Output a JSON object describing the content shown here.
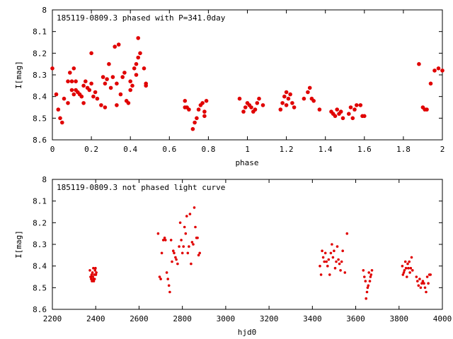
{
  "colors": {
    "points": "#e00000",
    "axis": "#000000",
    "background": "#ffffff"
  },
  "chart_data": [
    {
      "type": "scatter",
      "title": "185119-0809.3 phased with P=341.0day",
      "xlabel": "phase",
      "ylabel": "I[mag]",
      "xlim": [
        0,
        2
      ],
      "ylim": [
        8.6,
        8
      ],
      "y_inverted": true,
      "grid": false,
      "xticks": [
        "0",
        "0.2",
        "0.4",
        "0.6",
        "0.8",
        "1",
        "1.2",
        "1.4",
        "1.6",
        "1.8",
        "2"
      ],
      "yticks": [
        "8",
        "8.1",
        "8.2",
        "8.3",
        "8.4",
        "8.5",
        "8.6"
      ],
      "x": [
        0.0,
        0.03,
        0.04,
        0.05,
        0.06,
        0.08,
        0.08,
        0.09,
        0.1,
        0.1,
        0.11,
        0.11,
        0.12,
        0.13,
        0.14,
        0.15,
        0.16,
        0.17,
        0.18,
        0.19,
        0.2,
        0.2,
        0.21,
        0.22,
        0.23,
        0.25,
        0.26,
        0.27,
        0.28,
        0.29,
        0.3,
        0.31,
        0.32,
        0.33,
        0.34,
        0.35,
        0.36,
        0.37,
        0.38,
        0.39,
        0.4,
        0.4,
        0.41,
        0.42,
        0.43,
        0.43,
        0.44,
        0.44,
        0.45,
        0.47,
        0.48,
        0.48,
        0.68,
        0.68,
        0.69,
        0.7,
        0.72,
        0.73,
        0.74,
        0.75,
        0.76,
        0.77,
        0.78,
        0.78,
        0.79,
        0.96,
        0.98,
        0.99,
        1.0,
        1.01,
        1.02,
        1.03,
        1.04,
        1.05,
        1.06,
        1.08,
        1.17,
        1.18,
        1.19,
        1.2,
        1.2,
        1.21,
        1.22,
        1.23,
        1.24,
        1.29,
        1.31,
        1.32,
        1.33,
        1.34,
        1.37,
        1.43,
        1.44,
        1.45,
        1.46,
        1.47,
        1.48,
        1.49,
        1.52,
        1.53,
        1.54,
        1.55,
        1.56,
        1.58,
        1.59,
        1.6,
        1.88,
        1.9,
        1.91,
        1.92,
        1.94,
        1.96,
        1.98,
        2.0,
        0.02,
        0.27,
        0.33,
        0.16,
        0.12
      ],
      "y": [
        8.27,
        8.46,
        8.5,
        8.52,
        8.41,
        8.43,
        8.33,
        8.29,
        8.33,
        8.37,
        8.27,
        8.39,
        8.33,
        8.38,
        8.39,
        8.4,
        8.35,
        8.33,
        8.36,
        8.37,
        8.2,
        8.34,
        8.4,
        8.38,
        8.41,
        8.44,
        8.31,
        8.34,
        8.32,
        8.25,
        8.36,
        8.31,
        8.17,
        8.34,
        8.16,
        8.39,
        8.31,
        8.29,
        8.42,
        8.43,
        8.33,
        8.37,
        8.35,
        8.27,
        8.25,
        8.3,
        8.13,
        8.22,
        8.2,
        8.27,
        8.35,
        8.34,
        8.42,
        8.45,
        8.45,
        8.46,
        8.55,
        8.52,
        8.5,
        8.46,
        8.44,
        8.43,
        8.49,
        8.47,
        8.42,
        8.41,
        8.47,
        8.45,
        8.43,
        8.44,
        8.45,
        8.47,
        8.46,
        8.43,
        8.41,
        8.44,
        8.46,
        8.43,
        8.4,
        8.38,
        8.44,
        8.41,
        8.39,
        8.43,
        8.45,
        8.41,
        8.38,
        8.36,
        8.41,
        8.42,
        8.46,
        8.47,
        8.48,
        8.49,
        8.46,
        8.48,
        8.47,
        8.5,
        8.48,
        8.45,
        8.5,
        8.46,
        8.44,
        8.44,
        8.49,
        8.49,
        8.25,
        8.45,
        8.46,
        8.46,
        8.34,
        8.28,
        8.27,
        8.28,
        8.39,
        8.45,
        8.44,
        8.43,
        8.37
      ]
    },
    {
      "type": "scatter",
      "title": "185119-0809.3 not phased light curve",
      "xlabel": "hjd0",
      "ylabel": "I[mag]",
      "xlim": [
        2200,
        4000
      ],
      "ylim": [
        8.6,
        8
      ],
      "y_inverted": true,
      "grid": false,
      "xticks": [
        "2200",
        "2400",
        "2600",
        "2800",
        "3000",
        "3200",
        "3400",
        "3600",
        "3800",
        "4000"
      ],
      "yticks": [
        "8",
        "8.1",
        "8.2",
        "8.3",
        "8.4",
        "8.5",
        "8.6"
      ],
      "x": [
        2373,
        2376,
        2379,
        2381,
        2383,
        2385,
        2387,
        2389,
        2391,
        2393,
        2395,
        2397,
        2399,
        2401,
        2403,
        2380,
        2390,
        2400,
        2688,
        2695,
        2700,
        2705,
        2712,
        2718,
        2722,
        2728,
        2733,
        2738,
        2742,
        2748,
        2752,
        2758,
        2762,
        2768,
        2772,
        2778,
        2785,
        2790,
        2795,
        2800,
        2805,
        2810,
        2815,
        2820,
        2825,
        2830,
        2835,
        2840,
        2845,
        2850,
        2855,
        2860,
        2865,
        2870,
        2875,
        2880,
        3435,
        3440,
        3445,
        3450,
        3455,
        3460,
        3465,
        3470,
        3475,
        3480,
        3485,
        3490,
        3495,
        3500,
        3505,
        3510,
        3515,
        3520,
        3525,
        3530,
        3535,
        3540,
        3550,
        3560,
        3635,
        3640,
        3645,
        3648,
        3652,
        3655,
        3658,
        3661,
        3665,
        3668,
        3671,
        3675,
        3815,
        3818,
        3822,
        3825,
        3829,
        3832,
        3836,
        3840,
        3843,
        3847,
        3850,
        3854,
        3858,
        3862,
        3880,
        3885,
        3890,
        3895,
        3900,
        3905,
        3910,
        3915,
        3920,
        3925,
        3930,
        3935,
        3940,
        3945
      ],
      "y": [
        8.42,
        8.45,
        8.46,
        8.44,
        8.47,
        8.43,
        8.45,
        8.41,
        8.47,
        8.44,
        8.46,
        8.42,
        8.41,
        8.44,
        8.43,
        8.45,
        8.46,
        8.44,
        8.25,
        8.45,
        8.46,
        8.34,
        8.28,
        8.27,
        8.28,
        8.43,
        8.46,
        8.49,
        8.52,
        8.28,
        8.38,
        8.33,
        8.34,
        8.36,
        8.37,
        8.39,
        8.31,
        8.2,
        8.28,
        8.34,
        8.31,
        8.22,
        8.25,
        8.17,
        8.34,
        8.31,
        8.16,
        8.39,
        8.29,
        8.3,
        8.13,
        8.22,
        8.27,
        8.27,
        8.35,
        8.34,
        8.4,
        8.44,
        8.33,
        8.36,
        8.38,
        8.34,
        8.38,
        8.4,
        8.37,
        8.44,
        8.34,
        8.3,
        8.36,
        8.33,
        8.41,
        8.38,
        8.31,
        8.37,
        8.39,
        8.42,
        8.38,
        8.33,
        8.43,
        8.25,
        8.42,
        8.45,
        8.47,
        8.55,
        8.52,
        8.5,
        8.49,
        8.43,
        8.47,
        8.45,
        8.44,
        8.42,
        8.4,
        8.44,
        8.43,
        8.42,
        8.38,
        8.41,
        8.45,
        8.39,
        8.41,
        8.38,
        8.43,
        8.41,
        8.36,
        8.42,
        8.45,
        8.47,
        8.49,
        8.46,
        8.5,
        8.48,
        8.47,
        8.48,
        8.5,
        8.52,
        8.45,
        8.48,
        8.44,
        8.44
      ]
    }
  ]
}
